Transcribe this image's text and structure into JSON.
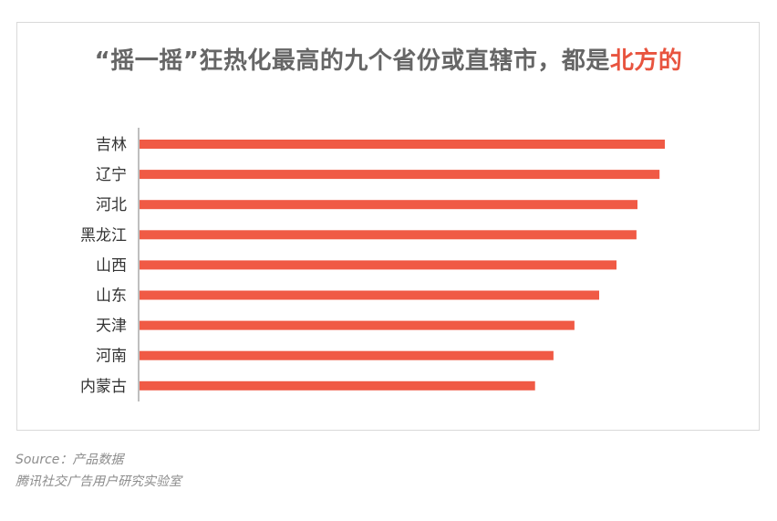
{
  "title": {
    "main": "“摇一摇”狂热化最高的九个省份或直辖市，都是",
    "highlight": "北方的"
  },
  "colors": {
    "bar": "#f05a45",
    "title": "#666666",
    "highlight": "#e8543f",
    "axis": "#7f7f7f",
    "label": "#333333",
    "footer": "#8c8c8c"
  },
  "chart_data": {
    "type": "bar",
    "orientation": "horizontal",
    "title": "“摇一摇”狂热化最高的九个省份或直辖市，都是北方的",
    "categories": [
      "吉林",
      "辽宁",
      "河北",
      "黑龙江",
      "山西",
      "山东",
      "天津",
      "河南",
      "内蒙古"
    ],
    "values": [
      100,
      99,
      94.8,
      94.6,
      90.8,
      87.5,
      82.8,
      78.8,
      75.3
    ],
    "xlabel": "",
    "ylabel": "",
    "xlim": [
      0,
      100
    ],
    "grid": false,
    "legend": "none"
  },
  "footer": {
    "source": "Source：产品数据",
    "lab": "腾讯社交广告用户研究实验室"
  }
}
